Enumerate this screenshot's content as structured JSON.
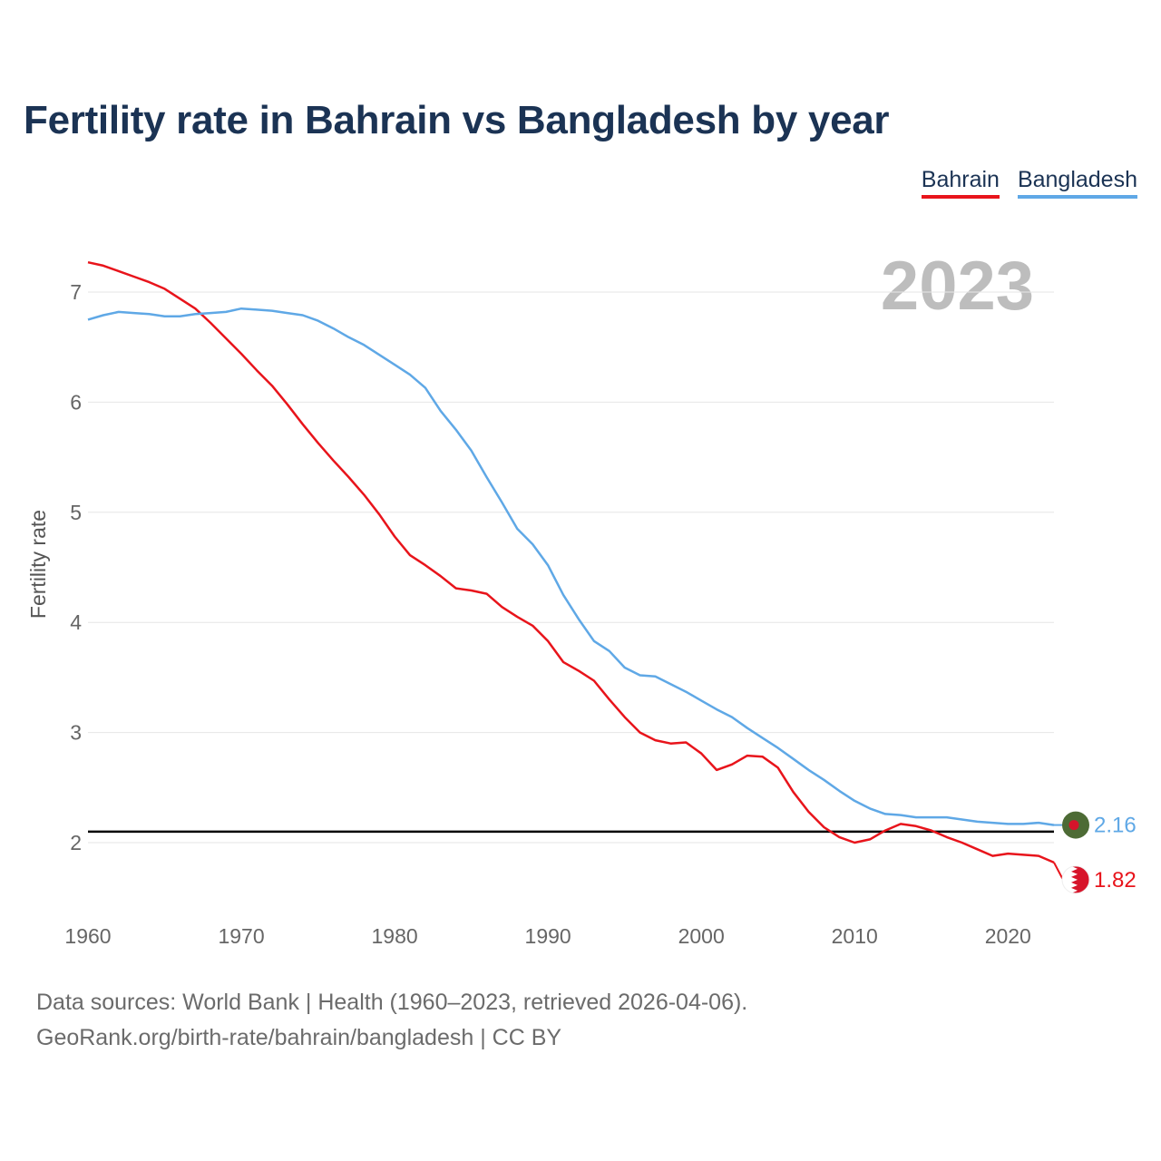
{
  "title": "Fertility rate in Bahrain vs Bangladesh by year",
  "legend": [
    {
      "label": "Bahrain",
      "color": "#e8141b"
    },
    {
      "label": "Bangladesh",
      "color": "#5fa8e6"
    }
  ],
  "source": {
    "line1": "Data sources: World Bank | Health (1960–2023, retrieved 2026-04-06).",
    "line2": "GeoRank.org/birth-rate/bahrain/bangladesh | CC BY"
  },
  "chart_data": {
    "type": "line",
    "title": "Fertility rate in Bahrain vs Bangladesh by year",
    "xlabel": "",
    "ylabel": "Fertility rate",
    "year_display": "2023",
    "xlim": [
      1960,
      2023
    ],
    "ylim": [
      1.5,
      7.4
    ],
    "x_ticks": [
      1960,
      1970,
      1980,
      1990,
      2000,
      2010,
      2020
    ],
    "y_ticks": [
      2,
      3,
      4,
      5,
      6,
      7
    ],
    "grid": true,
    "reference_line": 2.1,
    "x": [
      1960,
      1961,
      1962,
      1963,
      1964,
      1965,
      1966,
      1967,
      1968,
      1969,
      1970,
      1971,
      1972,
      1973,
      1974,
      1975,
      1976,
      1977,
      1978,
      1979,
      1980,
      1981,
      1982,
      1983,
      1984,
      1985,
      1986,
      1987,
      1988,
      1989,
      1990,
      1991,
      1992,
      1993,
      1994,
      1995,
      1996,
      1997,
      1998,
      1999,
      2000,
      2001,
      2002,
      2003,
      2004,
      2005,
      2006,
      2007,
      2008,
      2009,
      2010,
      2011,
      2012,
      2013,
      2014,
      2015,
      2016,
      2017,
      2018,
      2019,
      2020,
      2021,
      2022,
      2023
    ],
    "series": [
      {
        "name": "Bahrain",
        "color": "#e8141b",
        "end_label": "1.82",
        "values": [
          7.27,
          7.24,
          7.19,
          7.14,
          7.09,
          7.03,
          6.94,
          6.85,
          6.72,
          6.58,
          6.44,
          6.29,
          6.15,
          5.98,
          5.8,
          5.63,
          5.47,
          5.32,
          5.16,
          4.98,
          4.78,
          4.61,
          4.52,
          4.42,
          4.31,
          4.29,
          4.26,
          4.14,
          4.05,
          3.97,
          3.83,
          3.64,
          3.56,
          3.47,
          3.3,
          3.14,
          3.0,
          2.93,
          2.9,
          2.91,
          2.81,
          2.66,
          2.71,
          2.79,
          2.78,
          2.68,
          2.46,
          2.28,
          2.14,
          2.05,
          2.0,
          2.03,
          2.11,
          2.17,
          2.15,
          2.11,
          2.05,
          2.0,
          1.94,
          1.88,
          1.9,
          1.89,
          1.88,
          1.82
        ]
      },
      {
        "name": "Bangladesh",
        "color": "#5fa8e6",
        "end_label": "2.16",
        "values": [
          6.75,
          6.79,
          6.82,
          6.81,
          6.8,
          6.78,
          6.78,
          6.8,
          6.81,
          6.82,
          6.85,
          6.84,
          6.83,
          6.81,
          6.79,
          6.74,
          6.67,
          6.59,
          6.52,
          6.43,
          6.34,
          6.25,
          6.13,
          5.92,
          5.75,
          5.56,
          5.32,
          5.09,
          4.85,
          4.71,
          4.52,
          4.25,
          4.03,
          3.83,
          3.74,
          3.59,
          3.52,
          3.51,
          3.44,
          3.37,
          3.29,
          3.21,
          3.14,
          3.04,
          2.95,
          2.86,
          2.76,
          2.66,
          2.57,
          2.47,
          2.38,
          2.31,
          2.26,
          2.25,
          2.23,
          2.23,
          2.23,
          2.21,
          2.19,
          2.18,
          2.17,
          2.17,
          2.18,
          2.16
        ]
      }
    ]
  }
}
